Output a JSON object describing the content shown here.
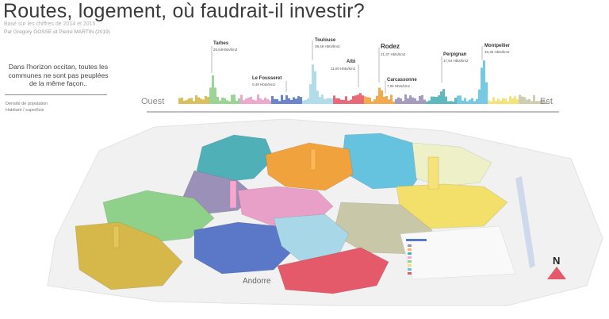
{
  "header": {
    "title": "Routes, logement, où faudrait-il investir?",
    "subtitle": "Basé sur les chiffres de 2014 et 2015",
    "authors": "Par Gregory GOSSE  et Pierre MARTIN (2019)"
  },
  "intro": {
    "text": "Dans l'horizon occitan, toutes les communes ne sont pas peuplées de la même façon..",
    "legend_line1": "Densité de population",
    "legend_line2": "Habitant / superficie"
  },
  "skyline": {
    "left_label": "Ouest",
    "right_label": "Est",
    "cities": [
      {
        "name": "Tarbes",
        "value": "26,64Hbts/km2"
      },
      {
        "name": "Le Fousseret",
        "value": "0,49 Hbts/km2"
      },
      {
        "name": "Toulouse",
        "value": "39,49 Hbts/km2"
      },
      {
        "name": "Albi",
        "value": "11,00 Hbts/km2"
      },
      {
        "name": "Rodez",
        "value": "21,37 Hbts/km2"
      },
      {
        "name": "Carcassonne",
        "value": "7,05 Hbts/km2"
      },
      {
        "name": "Perpignan",
        "value": "17,64 Hbts/km2"
      },
      {
        "name": "Montpellier",
        "value": "46,35 Hbts/km2"
      }
    ]
  },
  "map": {
    "andorra_label": "Andorre",
    "north_label": "N",
    "colors": {
      "hautes_pyrenees": "#d6b84a",
      "gers": "#8fd08a",
      "haute_garonne": "#e9a0c8",
      "ariege": "#5b78c8",
      "aude": "#a8d8e8",
      "pyrenees_orientales": "#e45a6a",
      "tarn": "#f0a23c",
      "tarn_et_garonne": "#9a90b8",
      "lot": "#4fb0b8",
      "aveyron": "#66c3e0",
      "lozere": "#eef0c8",
      "gard": "#f2e06a",
      "herault": "#c8c8a8"
    }
  }
}
